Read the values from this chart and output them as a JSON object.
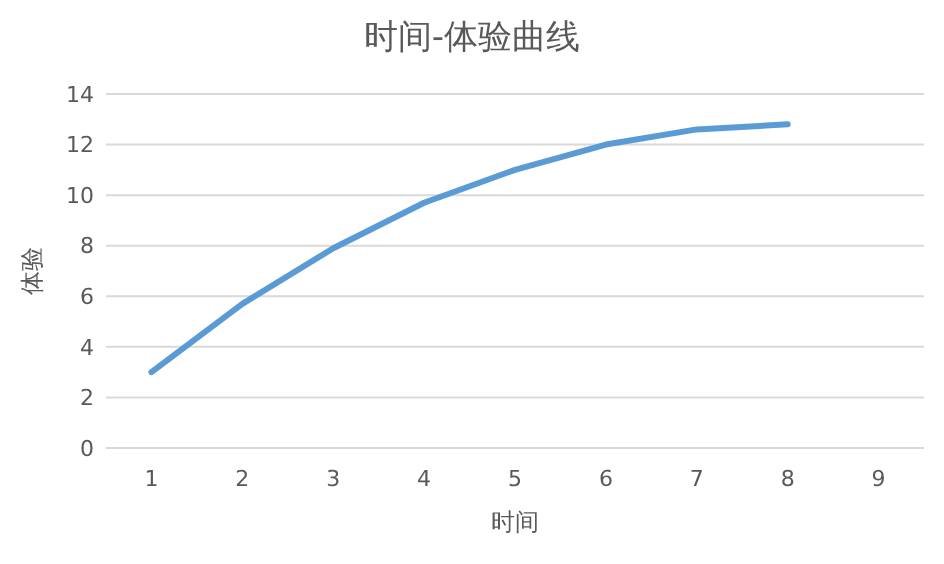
{
  "chart_data": {
    "type": "line",
    "title": "时间-体验曲线",
    "xlabel": "时间",
    "ylabel": "体验",
    "categories": [
      "1",
      "2",
      "3",
      "4",
      "5",
      "6",
      "7",
      "8",
      "9"
    ],
    "series": [
      {
        "color": "#5b9bd5",
        "values": [
          3.0,
          5.7,
          7.9,
          9.7,
          11.0,
          12.0,
          12.6,
          12.8,
          null
        ]
      }
    ],
    "ylim": [
      0,
      14
    ],
    "yticks": [
      0,
      2,
      4,
      6,
      8,
      10,
      12,
      14
    ],
    "grid": "y",
    "marker": "none",
    "line_style": "solid"
  }
}
